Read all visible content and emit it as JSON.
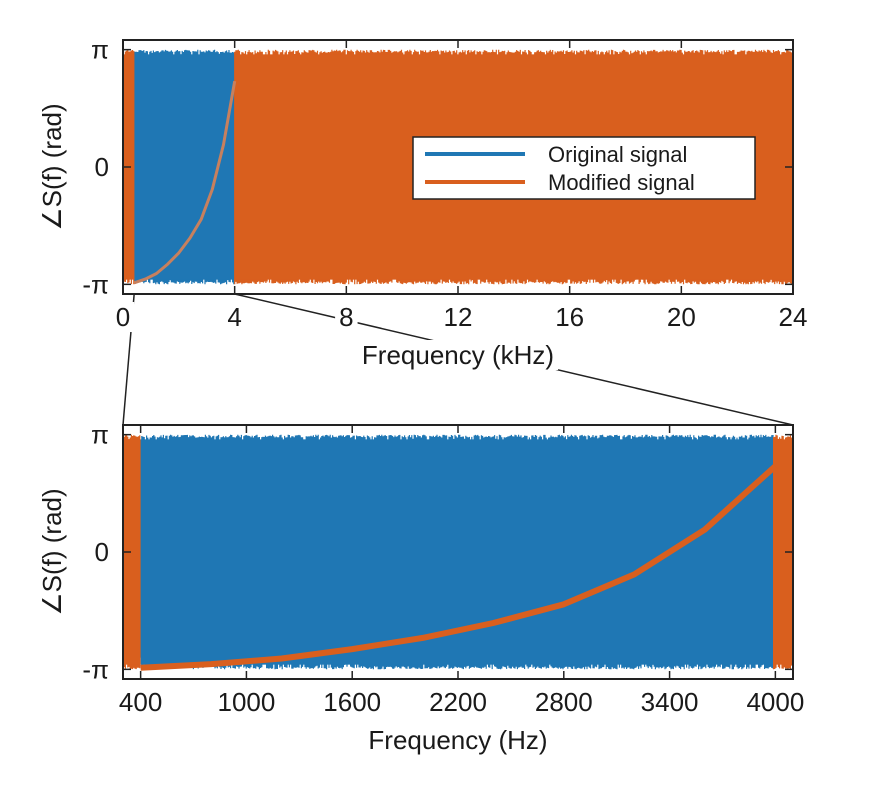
{
  "chart_data": [
    {
      "type": "line",
      "xlabel": "Frequency (kHz)",
      "ylabel": "∠S(f) (rad)",
      "xlim": [
        0,
        24
      ],
      "ylim": [
        -3.4,
        3.4
      ],
      "x_ticks": [
        0,
        4,
        8,
        12,
        16,
        20,
        24
      ],
      "x_tick_labels": [
        "0",
        "4",
        "8",
        "12",
        "16",
        "20",
        "24"
      ],
      "y_ticks": [
        -3.14159,
        0,
        3.14159
      ],
      "y_tick_labels": [
        "-π",
        "0",
        "π"
      ],
      "legend": {
        "position": "right",
        "entries": [
          "Original signal",
          "Modified signal"
        ]
      },
      "series": [
        {
          "name": "Original signal",
          "color": "#1f77b4",
          "description_range": [
            -3.14159,
            3.14159
          ],
          "x_range": [
            0,
            24
          ]
        },
        {
          "name": "Modified signal",
          "color": "#d95f1e",
          "phase_ramp_x": [
            0.4,
            0.8,
            1.2,
            1.6,
            2.0,
            2.4,
            2.8,
            3.2,
            3.6,
            4.0
          ],
          "phase_ramp_y": [
            -3.1,
            -3.0,
            -2.85,
            -2.6,
            -2.3,
            -1.9,
            -1.4,
            -0.6,
            0.6,
            2.3
          ],
          "random_phase_x_ranges": [
            [
              0,
              0.4
            ],
            [
              4.0,
              24
            ]
          ]
        }
      ]
    },
    {
      "type": "line",
      "xlabel": "Frequency (Hz)",
      "ylabel": "∠S(f) (rad)",
      "xlim": [
        300,
        4100
      ],
      "ylim": [
        -3.4,
        3.4
      ],
      "x_ticks": [
        400,
        1000,
        1600,
        2200,
        2800,
        3400,
        4000
      ],
      "x_tick_labels": [
        "400",
        "1000",
        "1600",
        "2200",
        "2800",
        "3400",
        "4000"
      ],
      "y_ticks": [
        -3.14159,
        0,
        3.14159
      ],
      "y_tick_labels": [
        "-π",
        "0",
        "π"
      ],
      "series": [
        {
          "name": "Original signal",
          "color": "#1f77b4",
          "x_range": [
            300,
            4100
          ]
        },
        {
          "name": "Modified signal",
          "color": "#d95f1e",
          "phase_ramp_x": [
            400,
            800,
            1200,
            1600,
            2000,
            2400,
            2800,
            3200,
            3600,
            4000
          ],
          "phase_ramp_y": [
            -3.1,
            -3.0,
            -2.85,
            -2.6,
            -2.3,
            -1.9,
            -1.4,
            -0.6,
            0.6,
            2.3
          ],
          "random_phase_x_ranges": [
            [
              300,
              400
            ],
            [
              3990,
              4100
            ]
          ]
        }
      ]
    }
  ]
}
